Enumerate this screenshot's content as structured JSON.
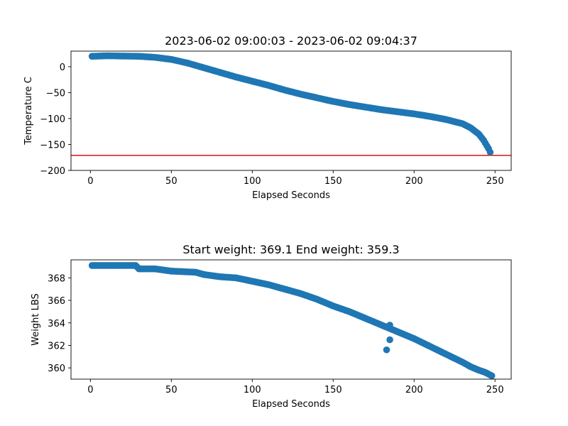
{
  "colors": {
    "marker": "#1f77b4",
    "hline": "#d62728",
    "axes": "#000000"
  },
  "chart_data": [
    {
      "id": "temperature",
      "type": "scatter",
      "title": "2023-06-02 09:00:03 - 2023-06-02 09:04:37",
      "xlabel": "Elapsed Seconds",
      "ylabel": "Temperature C",
      "xlim": [
        -12,
        260
      ],
      "ylim": [
        -200,
        30
      ],
      "xticks": [
        0,
        50,
        100,
        150,
        200,
        250
      ],
      "yticks": [
        0,
        -50,
        -100,
        -150,
        -200
      ],
      "ytick_labels": [
        "0",
        "−50",
        "−100",
        "−150",
        "−200"
      ],
      "hline": {
        "y": -171,
        "color": "#d62728"
      },
      "marker_color": "#1f77b4",
      "curve": [
        [
          1,
          20
        ],
        [
          10,
          21
        ],
        [
          30,
          20
        ],
        [
          40,
          18
        ],
        [
          50,
          14
        ],
        [
          60,
          7
        ],
        [
          70,
          -2
        ],
        [
          80,
          -11
        ],
        [
          90,
          -20
        ],
        [
          100,
          -28
        ],
        [
          110,
          -36
        ],
        [
          120,
          -45
        ],
        [
          130,
          -53
        ],
        [
          140,
          -60
        ],
        [
          150,
          -67
        ],
        [
          160,
          -73
        ],
        [
          170,
          -78
        ],
        [
          180,
          -83
        ],
        [
          190,
          -87
        ],
        [
          200,
          -91
        ],
        [
          210,
          -96
        ],
        [
          220,
          -102
        ],
        [
          230,
          -110
        ],
        [
          235,
          -118
        ],
        [
          240,
          -130
        ],
        [
          243,
          -142
        ],
        [
          246,
          -158
        ],
        [
          247,
          -165
        ]
      ],
      "points": []
    },
    {
      "id": "weight",
      "type": "scatter",
      "title": "Start weight: 369.1 End weight: 359.3",
      "xlabel": "Elapsed Seconds",
      "ylabel": "Weight LBS",
      "xlim": [
        -12,
        260
      ],
      "ylim": [
        359,
        369.6
      ],
      "xticks": [
        0,
        50,
        100,
        150,
        200,
        250
      ],
      "yticks": [
        360,
        362,
        364,
        366,
        368
      ],
      "ytick_labels": [
        "360",
        "362",
        "364",
        "366",
        "368"
      ],
      "marker_color": "#1f77b4",
      "curve": [
        [
          1,
          369.1
        ],
        [
          10,
          369.1
        ],
        [
          28,
          369.1
        ],
        [
          30,
          368.8
        ],
        [
          40,
          368.8
        ],
        [
          50,
          368.6
        ],
        [
          65,
          368.5
        ],
        [
          70,
          368.3
        ],
        [
          80,
          368.1
        ],
        [
          90,
          368.0
        ],
        [
          100,
          367.7
        ],
        [
          110,
          367.4
        ],
        [
          120,
          367.0
        ],
        [
          130,
          366.6
        ],
        [
          140,
          366.1
        ],
        [
          150,
          365.5
        ],
        [
          160,
          365.0
        ],
        [
          170,
          364.4
        ],
        [
          180,
          363.8
        ],
        [
          190,
          363.2
        ],
        [
          200,
          362.6
        ],
        [
          210,
          361.9
        ],
        [
          220,
          361.2
        ],
        [
          230,
          360.5
        ],
        [
          235,
          360.1
        ],
        [
          240,
          359.8
        ],
        [
          244,
          359.6
        ],
        [
          248,
          359.3
        ]
      ],
      "points": [
        [
          183,
          361.6
        ],
        [
          185,
          362.5
        ],
        [
          185,
          363.8
        ]
      ]
    }
  ]
}
